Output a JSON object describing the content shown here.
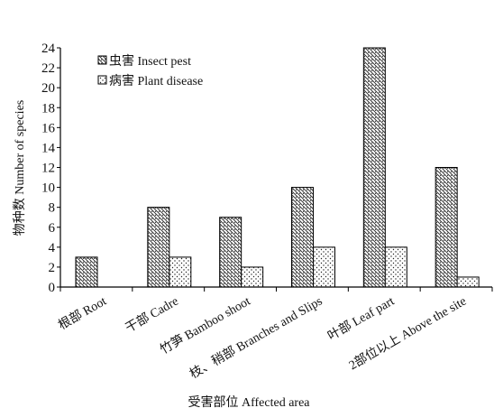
{
  "chart_data": {
    "type": "bar",
    "categories": [
      "根部 Root",
      "干部 Cadre",
      "竹笋 Bamboo shoot",
      "枝、稍部 Branches and Slips",
      "叶部 Leaf part",
      "2部位以上 Above the site"
    ],
    "series": [
      {
        "name": "虫害 Insect pest",
        "values": [
          3,
          8,
          7,
          10,
          24,
          12
        ],
        "pattern": "diagonal-hatch"
      },
      {
        "name": "病害 Plant disease",
        "values": [
          0,
          3,
          2,
          4,
          4,
          1
        ],
        "pattern": "dots"
      }
    ],
    "xlabel": "受害部位 Affected area",
    "ylabel": "物种数 Number of species",
    "ylim": [
      0,
      24
    ],
    "yticks": [
      0,
      2,
      4,
      6,
      8,
      10,
      12,
      14,
      16,
      18,
      20,
      22,
      24
    ],
    "grid": false,
    "legend": "top-left",
    "colors": {
      "axis": "#000000",
      "bar_fill": "#ffffff",
      "ink": "#222222"
    }
  }
}
